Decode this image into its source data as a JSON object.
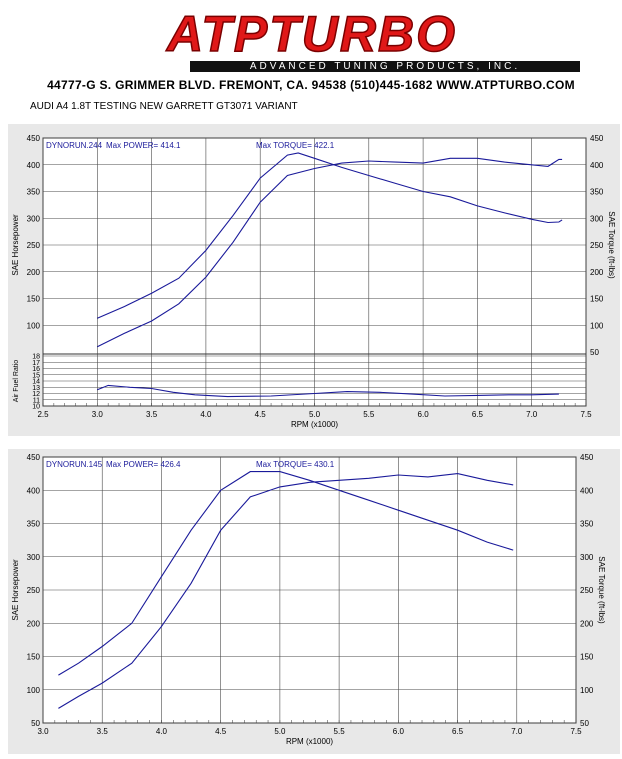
{
  "header": {
    "brand": "ATPTURBO",
    "tagline": "ADVANCED TUNING PRODUCTS, INC.",
    "address": "44777-G S. GRIMMER BLVD. FREMONT, CA. 94538 (510)445-1682 WWW.ATPTURBO.COM",
    "subtitle": "AUDI A4 1.8T TESTING NEW  GARRETT GT3071 VARIANT"
  },
  "colors": {
    "curve": "#1a1a9a",
    "grid": "#4a4a4a",
    "panel": "#e8e8e8",
    "brand": "#e01818"
  },
  "chart_data": [
    {
      "type": "line",
      "run": "DYNORUN.244",
      "max_power": "Max POWER= 414.1",
      "max_torque": "Max TORQUE= 422.1",
      "xlabel": "RPM (x1000)",
      "ylabel": "SAE Horsepower",
      "y2label": "SAE Torque (ft-lbs)",
      "afr_label": "Air Fuel Ratio",
      "xlim": [
        2.5,
        7.5
      ],
      "ylim": [
        50,
        450
      ],
      "xticks": [
        "2.5",
        "3.0",
        "3.5",
        "4.0",
        "4.5",
        "5.0",
        "5.5",
        "6.0",
        "6.5",
        "7.0",
        "7.5"
      ],
      "yticks": [
        "450",
        "400",
        "350",
        "300",
        "250",
        "200",
        "150",
        "100"
      ],
      "y2ticks": [
        "450",
        "400",
        "350",
        "300",
        "250",
        "200",
        "150",
        "100",
        "50"
      ],
      "afr_ticks": [
        "18",
        "17",
        "16",
        "15",
        "14",
        "13",
        "12",
        "11",
        "10"
      ],
      "afr_lim": [
        10,
        18
      ],
      "series": [
        {
          "name": "torque",
          "x": [
            3.0,
            3.25,
            3.5,
            3.75,
            4.0,
            4.25,
            4.5,
            4.75,
            4.85,
            5.0,
            5.25,
            5.5,
            5.75,
            6.0,
            6.25,
            6.5,
            6.75,
            7.0,
            7.15,
            7.25,
            7.28
          ],
          "y": [
            113,
            135,
            160,
            188,
            240,
            305,
            375,
            418,
            422,
            412,
            395,
            380,
            365,
            350,
            340,
            323,
            310,
            298,
            292,
            293,
            297
          ]
        },
        {
          "name": "power",
          "x": [
            3.0,
            3.25,
            3.5,
            3.75,
            4.0,
            4.25,
            4.5,
            4.75,
            5.0,
            5.25,
            5.5,
            5.75,
            6.0,
            6.25,
            6.5,
            6.75,
            7.0,
            7.15,
            7.25,
            7.28
          ],
          "y": [
            60,
            85,
            108,
            140,
            190,
            255,
            330,
            380,
            393,
            403,
            407,
            405,
            403,
            412,
            412,
            405,
            400,
            397,
            410,
            410
          ]
        },
        {
          "name": "afr",
          "x": [
            3.0,
            3.1,
            3.3,
            3.5,
            3.7,
            3.9,
            4.2,
            4.6,
            5.0,
            5.3,
            5.6,
            5.9,
            6.2,
            6.5,
            6.8,
            7.0,
            7.25
          ],
          "y": [
            12.6,
            13.3,
            13.0,
            12.8,
            12.2,
            11.8,
            11.5,
            11.6,
            12.0,
            12.3,
            12.2,
            11.9,
            11.6,
            11.7,
            11.8,
            11.8,
            11.9
          ]
        }
      ]
    },
    {
      "type": "line",
      "run": "DYNORUN.145",
      "max_power": "Max POWER= 426.4",
      "max_torque": "Max TORQUE= 430.1",
      "xlabel": "RPM (x1000)",
      "ylabel": "SAE Horsepower",
      "y2label": "SAE Torque (ft-lbs)",
      "xlim": [
        3.0,
        7.5
      ],
      "ylim": [
        50,
        450
      ],
      "xticks": [
        "3.0",
        "3.5",
        "4.0",
        "4.5",
        "5.0",
        "5.5",
        "6.0",
        "6.5",
        "7.0",
        "7.5"
      ],
      "yticks": [
        "450",
        "400",
        "350",
        "300",
        "250",
        "200",
        "150",
        "100",
        "50"
      ],
      "y2ticks": [
        "450",
        "400",
        "350",
        "300",
        "250",
        "200",
        "150",
        "100",
        "50"
      ],
      "series": [
        {
          "name": "torque",
          "x": [
            3.13,
            3.3,
            3.5,
            3.75,
            4.0,
            4.25,
            4.5,
            4.75,
            5.0,
            5.25,
            5.5,
            5.75,
            6.0,
            6.25,
            6.5,
            6.75,
            6.97
          ],
          "y": [
            122,
            140,
            165,
            200,
            270,
            340,
            400,
            428,
            428,
            415,
            400,
            385,
            370,
            355,
            340,
            322,
            310
          ]
        },
        {
          "name": "power",
          "x": [
            3.13,
            3.3,
            3.5,
            3.75,
            4.0,
            4.25,
            4.5,
            4.75,
            5.0,
            5.25,
            5.5,
            5.75,
            6.0,
            6.25,
            6.5,
            6.75,
            6.97
          ],
          "y": [
            72,
            90,
            110,
            140,
            195,
            260,
            340,
            390,
            405,
            412,
            415,
            418,
            423,
            420,
            425,
            415,
            408
          ]
        }
      ]
    }
  ]
}
